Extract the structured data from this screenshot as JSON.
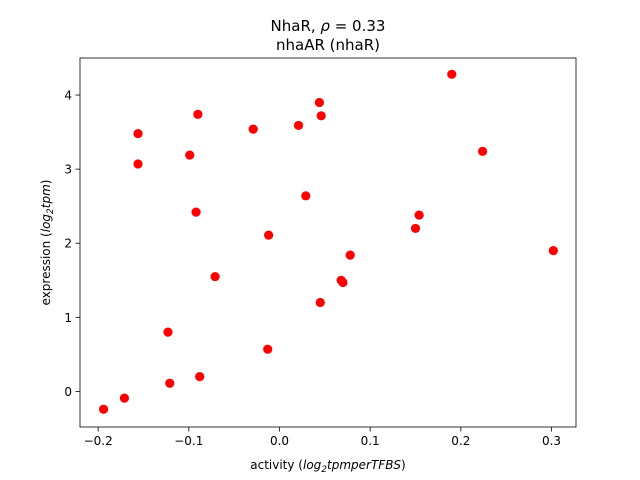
{
  "chart_data": {
    "type": "scatter",
    "title_line1_prefix": "NhaR, ",
    "title_line1_rho": "ρ",
    "title_line1_suffix": " = 0.33",
    "title_line2": "nhaAR (nhaR)",
    "xlabel_prefix": "activity (",
    "xlabel_math": "log",
    "xlabel_sub": "2",
    "xlabel_math_rest": "tpmperTFBS",
    "xlabel_suffix": ")",
    "ylabel_prefix": "expression (",
    "ylabel_math": "log",
    "ylabel_sub": "2",
    "ylabel_math_rest": "tpm",
    "ylabel_suffix": ")",
    "xlim": [
      -0.22,
      0.327
    ],
    "ylim": [
      -0.48,
      4.5
    ],
    "xticks": [
      -0.2,
      -0.1,
      0.0,
      0.1,
      0.2,
      0.3
    ],
    "xtick_labels": [
      "−0.2",
      "−0.1",
      "0.0",
      "0.1",
      "0.2",
      "0.3"
    ],
    "yticks": [
      0,
      1,
      2,
      3,
      4
    ],
    "ytick_labels": [
      "0",
      "1",
      "2",
      "3",
      "4"
    ],
    "grid": false,
    "marker_color": "#ff0000",
    "points": [
      {
        "x": -0.194,
        "y": -0.24
      },
      {
        "x": -0.171,
        "y": -0.09
      },
      {
        "x": -0.156,
        "y": 3.48
      },
      {
        "x": -0.156,
        "y": 3.07
      },
      {
        "x": -0.123,
        "y": 0.8
      },
      {
        "x": -0.121,
        "y": 0.11
      },
      {
        "x": -0.099,
        "y": 3.19
      },
      {
        "x": -0.092,
        "y": 2.42
      },
      {
        "x": -0.09,
        "y": 3.74
      },
      {
        "x": -0.088,
        "y": 0.2
      },
      {
        "x": -0.071,
        "y": 1.55
      },
      {
        "x": -0.029,
        "y": 3.54
      },
      {
        "x": -0.013,
        "y": 0.57
      },
      {
        "x": -0.012,
        "y": 2.11
      },
      {
        "x": 0.021,
        "y": 3.59
      },
      {
        "x": 0.029,
        "y": 2.64
      },
      {
        "x": 0.044,
        "y": 3.9
      },
      {
        "x": 0.045,
        "y": 1.2
      },
      {
        "x": 0.046,
        "y": 3.72
      },
      {
        "x": 0.068,
        "y": 1.5
      },
      {
        "x": 0.07,
        "y": 1.47
      },
      {
        "x": 0.078,
        "y": 1.84
      },
      {
        "x": 0.15,
        "y": 2.2
      },
      {
        "x": 0.154,
        "y": 2.38
      },
      {
        "x": 0.19,
        "y": 4.28
      },
      {
        "x": 0.224,
        "y": 3.24
      },
      {
        "x": 0.302,
        "y": 1.9
      }
    ]
  }
}
